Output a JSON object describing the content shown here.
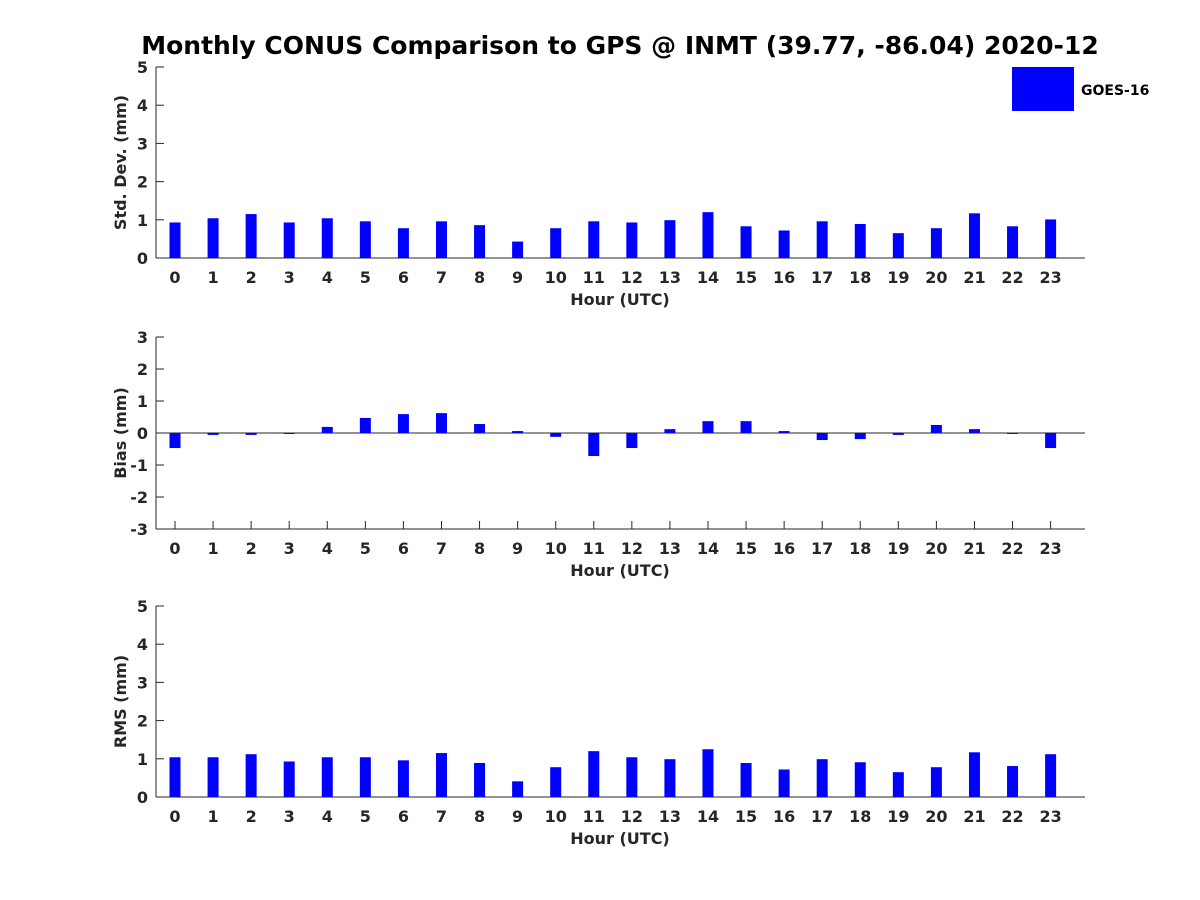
{
  "figure_title": "Monthly CONUS Comparison to GPS @ INMT (39.77, -86.04) 2020-12",
  "bar_color": "#0000ff",
  "legend": {
    "label": "GOES-16"
  },
  "chart_data": [
    {
      "type": "bar",
      "series_name": "GOES-16",
      "xlabel": "Hour (UTC)",
      "ylabel": "Std. Dev. (mm)",
      "ylim": [
        0,
        5
      ],
      "yticks": [
        0,
        1,
        2,
        3,
        4,
        5
      ],
      "categories": [
        "0",
        "1",
        "2",
        "3",
        "4",
        "5",
        "6",
        "7",
        "8",
        "9",
        "10",
        "11",
        "12",
        "13",
        "14",
        "15",
        "16",
        "17",
        "18",
        "19",
        "20",
        "21",
        "22",
        "23"
      ],
      "values": [
        0.93,
        1.04,
        1.15,
        0.93,
        1.04,
        0.96,
        0.78,
        0.96,
        0.86,
        0.43,
        0.78,
        0.96,
        0.93,
        0.99,
        1.2,
        0.83,
        0.72,
        0.96,
        0.89,
        0.65,
        0.78,
        1.17,
        0.83,
        1.01
      ]
    },
    {
      "type": "bar",
      "series_name": "GOES-16",
      "xlabel": "Hour (UTC)",
      "ylabel": "Bias (mm)",
      "ylim": [
        -3,
        3
      ],
      "yticks": [
        -3,
        -2,
        -1,
        0,
        1,
        2,
        3
      ],
      "categories": [
        "0",
        "1",
        "2",
        "3",
        "4",
        "5",
        "6",
        "7",
        "8",
        "9",
        "10",
        "11",
        "12",
        "13",
        "14",
        "15",
        "16",
        "17",
        "18",
        "19",
        "20",
        "21",
        "22",
        "23"
      ],
      "values": [
        -0.47,
        -0.06,
        -0.06,
        -0.03,
        0.19,
        0.47,
        0.59,
        0.62,
        0.28,
        0.06,
        -0.12,
        -0.72,
        -0.47,
        0.12,
        0.37,
        0.37,
        0.06,
        -0.22,
        -0.19,
        -0.06,
        0.25,
        0.12,
        -0.03,
        -0.47
      ]
    },
    {
      "type": "bar",
      "series_name": "GOES-16",
      "xlabel": "Hour (UTC)",
      "ylabel": "RMS (mm)",
      "ylim": [
        0,
        5
      ],
      "yticks": [
        0,
        1,
        2,
        3,
        4,
        5
      ],
      "categories": [
        "0",
        "1",
        "2",
        "3",
        "4",
        "5",
        "6",
        "7",
        "8",
        "9",
        "10",
        "11",
        "12",
        "13",
        "14",
        "15",
        "16",
        "17",
        "18",
        "19",
        "20",
        "21",
        "22",
        "23"
      ],
      "values": [
        1.04,
        1.04,
        1.12,
        0.93,
        1.04,
        1.04,
        0.96,
        1.15,
        0.89,
        0.41,
        0.78,
        1.2,
        1.04,
        0.99,
        1.25,
        0.89,
        0.72,
        0.99,
        0.91,
        0.65,
        0.78,
        1.17,
        0.81,
        1.12
      ]
    }
  ]
}
